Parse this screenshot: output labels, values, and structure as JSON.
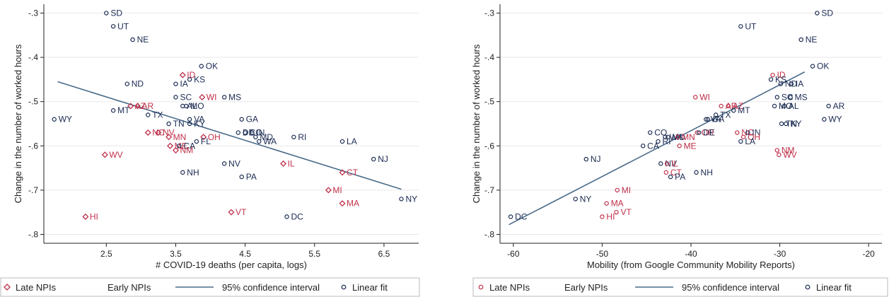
{
  "colors": {
    "late": "#c0304a",
    "early": "#1a2a52",
    "fit": "#4a6b8a",
    "axis": "#222222",
    "grid": "#e8e8e8",
    "legend_border": "#bbbbbb"
  },
  "legend": {
    "items": [
      {
        "label": "Late NPIs",
        "marker": "diamond-or-circle",
        "color": "#c0304a"
      },
      {
        "label": "Early NPIs",
        "marker": "none"
      },
      {
        "label": "95% confidence interval",
        "marker": "line"
      },
      {
        "label": "Linear fit",
        "marker": "circle",
        "color": "#1a2a52"
      }
    ]
  },
  "chart_data": [
    {
      "type": "scatter",
      "title": "",
      "xlabel": "# COVID-19 deaths (per capita, logs)",
      "ylabel": "Change in the number of worked hours",
      "xlim": [
        1.6,
        7.0
      ],
      "ylim": [
        -0.82,
        -0.28
      ],
      "xticks": [
        2.5,
        3.5,
        4.5,
        5.5,
        6.5
      ],
      "xtick_labels": [
        "2.5",
        "3.5",
        "4.5",
        "5.5",
        "6.5"
      ],
      "yticks": [
        -0.3,
        -0.4,
        -0.5,
        -0.6,
        -0.7,
        -0.8
      ],
      "ytick_labels": [
        "-.3",
        "-.4",
        "-.5",
        "-.6",
        "-.7",
        "-.8"
      ],
      "grid": true,
      "late_marker": "diamond",
      "fit_line": {
        "x": [
          1.8,
          6.75
        ],
        "y": [
          -0.455,
          -0.698
        ]
      },
      "points": [
        {
          "label": "SD",
          "x": 2.5,
          "y": -0.3,
          "group": "early"
        },
        {
          "label": "UT",
          "x": 2.6,
          "y": -0.33,
          "group": "early"
        },
        {
          "label": "NE",
          "x": 2.88,
          "y": -0.36,
          "group": "early"
        },
        {
          "label": "OK",
          "x": 3.87,
          "y": -0.42,
          "group": "early"
        },
        {
          "label": "ID",
          "x": 3.6,
          "y": -0.44,
          "group": "late"
        },
        {
          "label": "KS",
          "x": 3.7,
          "y": -0.45,
          "group": "early"
        },
        {
          "label": "ND",
          "x": 2.8,
          "y": -0.46,
          "group": "early"
        },
        {
          "label": "IA",
          "x": 3.5,
          "y": -0.46,
          "group": "early"
        },
        {
          "label": "SC",
          "x": 3.5,
          "y": -0.49,
          "group": "early"
        },
        {
          "label": "WI",
          "x": 3.88,
          "y": -0.49,
          "group": "late"
        },
        {
          "label": "MS",
          "x": 4.2,
          "y": -0.49,
          "group": "early"
        },
        {
          "label": "AZ",
          "x": 2.85,
          "y": -0.51,
          "group": "late"
        },
        {
          "label": "AR",
          "x": 2.95,
          "y": -0.51,
          "group": "late"
        },
        {
          "label": "AL",
          "x": 3.6,
          "y": -0.51,
          "group": "early"
        },
        {
          "label": "MO",
          "x": 3.65,
          "y": -0.51,
          "group": "early"
        },
        {
          "label": "MT",
          "x": 2.6,
          "y": -0.52,
          "group": "early"
        },
        {
          "label": "TX",
          "x": 3.1,
          "y": -0.53,
          "group": "early"
        },
        {
          "label": "WY",
          "x": 1.75,
          "y": -0.54,
          "group": "early"
        },
        {
          "label": "GA",
          "x": 4.45,
          "y": -0.54,
          "group": "early"
        },
        {
          "label": "VA",
          "x": 3.7,
          "y": -0.54,
          "group": "early"
        },
        {
          "label": "TN",
          "x": 3.4,
          "y": -0.55,
          "group": "early"
        },
        {
          "label": "KY",
          "x": 3.7,
          "y": -0.55,
          "group": "early"
        },
        {
          "label": "NC",
          "x": 3.1,
          "y": -0.57,
          "group": "late"
        },
        {
          "label": "NV",
          "x": 3.25,
          "y": -0.57,
          "group": "late"
        },
        {
          "label": "DE",
          "x": 4.4,
          "y": -0.57,
          "group": "early"
        },
        {
          "label": "CO",
          "x": 4.5,
          "y": -0.57,
          "group": "early"
        },
        {
          "label": "IN",
          "x": 4.6,
          "y": -0.57,
          "group": "early"
        },
        {
          "label": "MN",
          "x": 3.4,
          "y": -0.58,
          "group": "late"
        },
        {
          "label": "OH",
          "x": 3.9,
          "y": -0.58,
          "group": "late"
        },
        {
          "label": "MD",
          "x": 4.65,
          "y": -0.58,
          "group": "early"
        },
        {
          "label": "RI",
          "x": 5.2,
          "y": -0.58,
          "group": "early"
        },
        {
          "label": "WA",
          "x": 4.7,
          "y": -0.59,
          "group": "early"
        },
        {
          "label": "FL",
          "x": 3.8,
          "y": -0.59,
          "group": "early"
        },
        {
          "label": "LA",
          "x": 5.9,
          "y": -0.59,
          "group": "early"
        },
        {
          "label": "ME",
          "x": 3.42,
          "y": -0.6,
          "group": "late"
        },
        {
          "label": "CA",
          "x": 3.55,
          "y": -0.6,
          "group": "early"
        },
        {
          "label": "NM",
          "x": 3.5,
          "y": -0.61,
          "group": "late"
        },
        {
          "label": "WV",
          "x": 2.48,
          "y": -0.62,
          "group": "late"
        },
        {
          "label": "NJ",
          "x": 6.35,
          "y": -0.63,
          "group": "early"
        },
        {
          "label": "NV",
          "x": 4.2,
          "y": -0.64,
          "group": "early"
        },
        {
          "label": "IL",
          "x": 5.05,
          "y": -0.64,
          "group": "late"
        },
        {
          "label": "NH",
          "x": 3.6,
          "y": -0.66,
          "group": "early"
        },
        {
          "label": "CT",
          "x": 5.9,
          "y": -0.66,
          "group": "late"
        },
        {
          "label": "PA",
          "x": 4.45,
          "y": -0.67,
          "group": "early"
        },
        {
          "label": "MI",
          "x": 5.7,
          "y": -0.7,
          "group": "late"
        },
        {
          "label": "NY",
          "x": 6.75,
          "y": -0.72,
          "group": "early"
        },
        {
          "label": "MA",
          "x": 5.9,
          "y": -0.73,
          "group": "late"
        },
        {
          "label": "VT",
          "x": 4.3,
          "y": -0.75,
          "group": "late"
        },
        {
          "label": "HI",
          "x": 2.2,
          "y": -0.76,
          "group": "late"
        },
        {
          "label": "DC",
          "x": 5.1,
          "y": -0.76,
          "group": "early"
        }
      ]
    },
    {
      "type": "scatter",
      "title": "",
      "xlabel": "Mobility (from Google Community Mobility Reports)",
      "ylabel": "Change in the number of worked hours",
      "xlim": [
        -61.5,
        -18.5
      ],
      "ylim": [
        -0.82,
        -0.28
      ],
      "xticks": [
        -60,
        -50,
        -40,
        -30,
        -20
      ],
      "xtick_labels": [
        "-60",
        "-50",
        "-40",
        "-30",
        "-20"
      ],
      "yticks": [
        -0.3,
        -0.4,
        -0.5,
        -0.6,
        -0.7,
        -0.8
      ],
      "ytick_labels": [
        "-.3",
        "-.4",
        "-.5",
        "-.6",
        "-.7",
        "-.8"
      ],
      "grid": true,
      "late_marker": "circle",
      "fit_line": {
        "x": [
          -60.5,
          -27.2
        ],
        "y": [
          -0.778,
          -0.433
        ]
      },
      "points": [
        {
          "label": "SD",
          "x": -25.8,
          "y": -0.3,
          "group": "early"
        },
        {
          "label": "UT",
          "x": -34.4,
          "y": -0.33,
          "group": "early"
        },
        {
          "label": "NE",
          "x": -27.6,
          "y": -0.36,
          "group": "early"
        },
        {
          "label": "OK",
          "x": -26.3,
          "y": -0.42,
          "group": "early"
        },
        {
          "label": "ID",
          "x": -30.8,
          "y": -0.44,
          "group": "late"
        },
        {
          "label": "KS",
          "x": -31.0,
          "y": -0.45,
          "group": "early"
        },
        {
          "label": "ND",
          "x": -29.9,
          "y": -0.46,
          "group": "early"
        },
        {
          "label": "IA",
          "x": -28.7,
          "y": -0.46,
          "group": "early"
        },
        {
          "label": "SC",
          "x": -30.3,
          "y": -0.49,
          "group": "early"
        },
        {
          "label": "MS",
          "x": -28.8,
          "y": -0.49,
          "group": "early"
        },
        {
          "label": "WI",
          "x": -39.5,
          "y": -0.49,
          "group": "late"
        },
        {
          "label": "AZ",
          "x": -35.8,
          "y": -0.51,
          "group": "late"
        },
        {
          "label": "AR",
          "x": -36.6,
          "y": -0.51,
          "group": "late"
        },
        {
          "label": "AR",
          "x": -24.5,
          "y": -0.51,
          "group": "early"
        },
        {
          "label": "MO",
          "x": -30.6,
          "y": -0.51,
          "group": "early"
        },
        {
          "label": "AL",
          "x": -29.5,
          "y": -0.51,
          "group": "early"
        },
        {
          "label": "MT",
          "x": -35.2,
          "y": -0.52,
          "group": "early"
        },
        {
          "label": "TX",
          "x": -37.2,
          "y": -0.53,
          "group": "early"
        },
        {
          "label": "VA",
          "x": -38.3,
          "y": -0.54,
          "group": "early"
        },
        {
          "label": "GA",
          "x": -38.1,
          "y": -0.54,
          "group": "early"
        },
        {
          "label": "WY",
          "x": -25.0,
          "y": -0.54,
          "group": "early"
        },
        {
          "label": "TN",
          "x": -29.8,
          "y": -0.55,
          "group": "early"
        },
        {
          "label": "KY",
          "x": -29.3,
          "y": -0.55,
          "group": "early"
        },
        {
          "label": "CO",
          "x": -44.6,
          "y": -0.57,
          "group": "early"
        },
        {
          "label": "OR",
          "x": -39.3,
          "y": -0.57,
          "group": "late"
        },
        {
          "label": "DE",
          "x": -39.1,
          "y": -0.57,
          "group": "early"
        },
        {
          "label": "NC",
          "x": -34.8,
          "y": -0.57,
          "group": "late"
        },
        {
          "label": "IN",
          "x": -33.6,
          "y": -0.57,
          "group": "early"
        },
        {
          "label": "WA",
          "x": -42.9,
          "y": -0.58,
          "group": "early"
        },
        {
          "label": "MD",
          "x": -42.6,
          "y": -0.58,
          "group": "early"
        },
        {
          "label": "MN",
          "x": -41.5,
          "y": -0.58,
          "group": "late"
        },
        {
          "label": "OH",
          "x": -34.1,
          "y": -0.58,
          "group": "late"
        },
        {
          "label": "RI",
          "x": -43.7,
          "y": -0.59,
          "group": "early"
        },
        {
          "label": "LA",
          "x": -34.4,
          "y": -0.59,
          "group": "early"
        },
        {
          "label": "ME",
          "x": -41.3,
          "y": -0.6,
          "group": "late"
        },
        {
          "label": "CA",
          "x": -45.4,
          "y": -0.6,
          "group": "early"
        },
        {
          "label": "NM",
          "x": -30.3,
          "y": -0.61,
          "group": "late"
        },
        {
          "label": "WV",
          "x": -30.1,
          "y": -0.62,
          "group": "late"
        },
        {
          "label": "NJ",
          "x": -51.8,
          "y": -0.63,
          "group": "early"
        },
        {
          "label": "NV",
          "x": -43.4,
          "y": -0.64,
          "group": "early"
        },
        {
          "label": "IL",
          "x": -42.7,
          "y": -0.64,
          "group": "late"
        },
        {
          "label": "NH",
          "x": -39.4,
          "y": -0.66,
          "group": "early"
        },
        {
          "label": "CT",
          "x": -42.8,
          "y": -0.66,
          "group": "late"
        },
        {
          "label": "PA",
          "x": -42.3,
          "y": -0.67,
          "group": "early"
        },
        {
          "label": "MI",
          "x": -48.3,
          "y": -0.7,
          "group": "late"
        },
        {
          "label": "NY",
          "x": -53.0,
          "y": -0.72,
          "group": "early"
        },
        {
          "label": "MA",
          "x": -49.5,
          "y": -0.73,
          "group": "late"
        },
        {
          "label": "VT",
          "x": -48.4,
          "y": -0.75,
          "group": "late"
        },
        {
          "label": "HI",
          "x": -50.0,
          "y": -0.76,
          "group": "late"
        },
        {
          "label": "DC",
          "x": -60.3,
          "y": -0.76,
          "group": "early"
        }
      ]
    }
  ]
}
